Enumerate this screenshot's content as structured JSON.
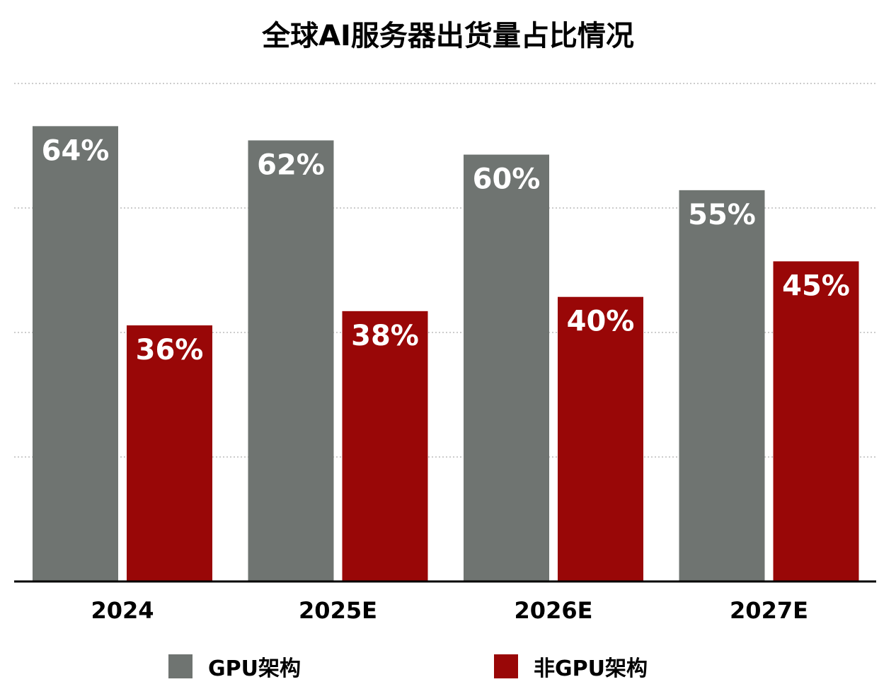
{
  "chart_data": {
    "type": "bar",
    "title": "全球AI服务器出货量占比情况",
    "categories": [
      "2024",
      "2025E",
      "2026E",
      "2027E"
    ],
    "series": [
      {
        "name": "GPU架构",
        "values": [
          64,
          62,
          60,
          55
        ],
        "labels": [
          "64%",
          "62%",
          "60%",
          "55%"
        ],
        "color": "#6f7471"
      },
      {
        "name": "非GPU架构",
        "values": [
          36,
          38,
          40,
          45
        ],
        "labels": [
          "36%",
          "38%",
          "40%",
          "45%"
        ],
        "color": "#990707"
      }
    ],
    "xlabel": "",
    "ylabel": "",
    "ylim": [
      0,
      70
    ],
    "grid": true,
    "legend": "bottom"
  }
}
